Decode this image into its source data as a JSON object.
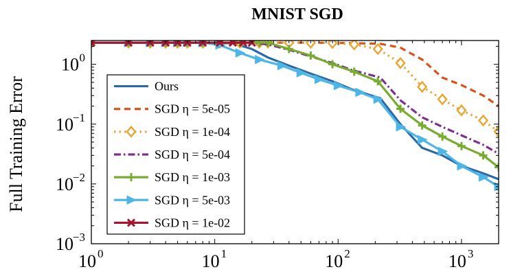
{
  "chart_data": {
    "type": "line",
    "title": "MNIST SGD",
    "xlabel": "",
    "ylabel": "Full Training Error",
    "xscale": "log",
    "yscale": "log",
    "xlim": [
      1,
      2000
    ],
    "ylim": [
      0.001,
      2.5
    ],
    "xticks": [
      {
        "base": "10",
        "exp": "0",
        "value": 1
      },
      {
        "base": "10",
        "exp": "1",
        "value": 10
      },
      {
        "base": "10",
        "exp": "2",
        "value": 100
      },
      {
        "base": "10",
        "exp": "3",
        "value": 1000
      }
    ],
    "yticks": [
      {
        "base": "10",
        "exp": "0",
        "value": 1
      },
      {
        "base": "10",
        "exp": "−1",
        "value": 0.1
      },
      {
        "base": "10",
        "exp": "−2",
        "value": 0.01
      },
      {
        "base": "10",
        "exp": "−3",
        "value": 0.001
      }
    ],
    "legend_position": "bottom-left",
    "series": [
      {
        "name": "Ours",
        "color": "#2b6aa8",
        "dash": "solid",
        "marker": "none",
        "x": [
          1,
          2,
          4,
          8,
          14,
          20,
          27,
          40,
          60,
          90,
          130,
          220,
          320,
          480,
          700,
          1000,
          1500,
          2000
        ],
        "y": [
          2.3,
          2.3,
          2.3,
          2.3,
          2.25,
          1.8,
          1.3,
          0.95,
          0.7,
          0.52,
          0.38,
          0.27,
          0.1,
          0.04,
          0.03,
          0.02,
          0.015,
          0.012
        ]
      },
      {
        "name": "SGD η = 5e-05",
        "color": "#d95319",
        "dash": "dashed",
        "marker": "none",
        "x": [
          1,
          2,
          4,
          8,
          14,
          20,
          27,
          40,
          60,
          90,
          130,
          220,
          320,
          480,
          700,
          1000,
          1500,
          2000
        ],
        "y": [
          2.3,
          2.3,
          2.3,
          2.3,
          2.3,
          2.3,
          2.3,
          2.3,
          2.3,
          2.28,
          2.26,
          2.2,
          1.9,
          1.2,
          0.6,
          0.45,
          0.3,
          0.2
        ]
      },
      {
        "name": "SGD η = 1e-04",
        "color": "#e8a838",
        "dash": "dotted",
        "marker": "diamond",
        "x": [
          1,
          2,
          3,
          4,
          5,
          6,
          8,
          11,
          16,
          23,
          27,
          40,
          60,
          90,
          135,
          210,
          320,
          480,
          700,
          1000,
          1500,
          2000
        ],
        "y": [
          2.3,
          2.3,
          2.3,
          2.3,
          2.3,
          2.3,
          2.3,
          2.3,
          2.3,
          2.3,
          2.3,
          2.3,
          2.29,
          2.27,
          2.15,
          1.8,
          1.05,
          0.42,
          0.26,
          0.17,
          0.115,
          0.075
        ]
      },
      {
        "name": "SGD η = 5e-04",
        "color": "#7e2f8e",
        "dash": "dashdot",
        "marker": "none",
        "x": [
          1,
          2,
          4,
          8,
          14,
          20,
          27,
          40,
          60,
          90,
          130,
          220,
          320,
          480,
          700,
          1000,
          1500,
          2000
        ],
        "y": [
          2.3,
          2.3,
          2.3,
          2.3,
          2.3,
          2.3,
          2.15,
          1.75,
          1.35,
          1.05,
          0.8,
          0.6,
          0.25,
          0.13,
          0.09,
          0.065,
          0.045,
          0.032
        ]
      },
      {
        "name": "SGD η = 1e-03",
        "color": "#77ac30",
        "dash": "solid",
        "marker": "plus",
        "x": [
          1,
          2,
          3,
          4,
          5,
          6,
          8,
          11,
          16,
          23,
          27,
          40,
          60,
          90,
          135,
          210,
          320,
          480,
          700,
          1000,
          1500,
          2000
        ],
        "y": [
          2.3,
          2.3,
          2.3,
          2.3,
          2.3,
          2.3,
          2.3,
          2.3,
          2.3,
          2.3,
          2.3,
          1.8,
          1.4,
          1.0,
          0.75,
          0.52,
          0.18,
          0.095,
          0.062,
          0.043,
          0.03,
          0.019
        ]
      },
      {
        "name": "SGD η = 5e-03",
        "color": "#4db6e6",
        "dash": "solid",
        "marker": "triangle-right",
        "x": [
          1,
          2,
          3,
          4,
          5,
          6,
          8,
          11,
          16,
          23,
          35,
          50,
          70,
          100,
          150,
          210,
          320,
          480,
          700,
          1000,
          1500,
          2000
        ],
        "y": [
          2.3,
          2.3,
          2.3,
          2.3,
          2.3,
          2.3,
          2.3,
          2.1,
          1.55,
          1.2,
          0.95,
          0.72,
          0.56,
          0.44,
          0.34,
          0.26,
          0.09,
          0.055,
          0.035,
          0.02,
          0.013,
          0.009
        ]
      },
      {
        "name": "SGD η = 1e-02",
        "color": "#a2142f",
        "dash": "solid",
        "marker": "x",
        "x": [
          1,
          2,
          3,
          4,
          5,
          6,
          8,
          11,
          14,
          17,
          20
        ],
        "y": [
          2.3,
          2.3,
          2.3,
          2.3,
          2.3,
          2.3,
          2.3,
          2.3,
          2.3,
          2.3,
          2.3
        ]
      }
    ]
  }
}
